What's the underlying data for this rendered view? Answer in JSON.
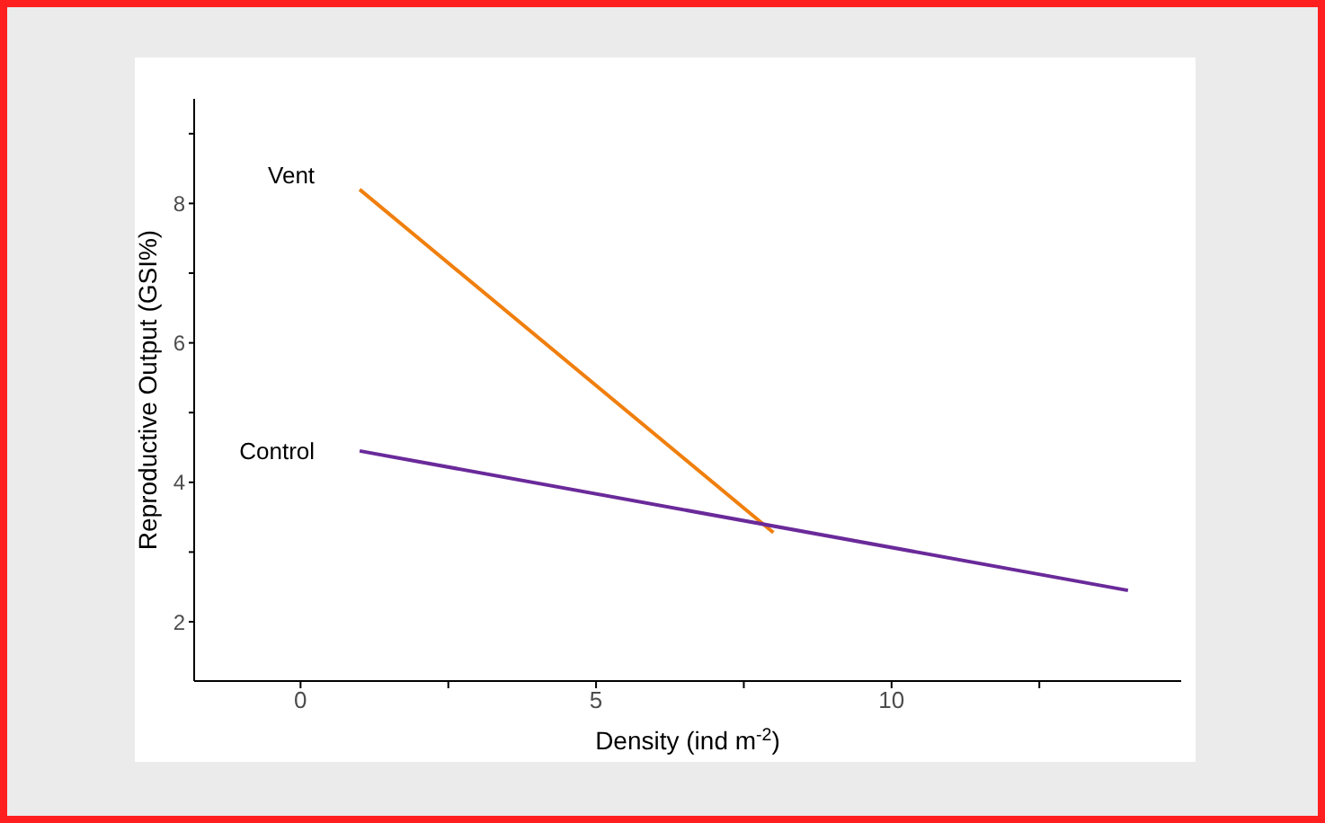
{
  "chart_data": {
    "type": "line",
    "xlabel": "Density (ind m$^{-2}$)",
    "ylabel": "Reproductive Output (GSI%)",
    "xlim": [
      -1.8,
      14.9
    ],
    "ylim": [
      1.15,
      9.5
    ],
    "xticks": [
      0,
      {
        "value": 2.5,
        "label": null
      },
      5,
      {
        "value": 7.5,
        "label": null
      },
      10,
      {
        "value": 12.5,
        "label": null
      }
    ],
    "yticks": [
      2,
      {
        "value": 3,
        "label": null
      },
      4,
      {
        "value": 5,
        "label": null
      },
      6,
      {
        "value": 7,
        "label": null
      },
      8,
      {
        "value": 9,
        "label": null
      }
    ],
    "series": [
      {
        "name": "Vent",
        "color": "#f07f0d",
        "x": [
          1,
          8
        ],
        "values": [
          8.2,
          3.28
        ]
      },
      {
        "name": "Control",
        "color": "#6a2a9a",
        "x": [
          1,
          14
        ],
        "values": [
          4.45,
          2.45
        ]
      }
    ],
    "grid": false,
    "legend": false,
    "marker": "none",
    "line_style": "solid"
  }
}
